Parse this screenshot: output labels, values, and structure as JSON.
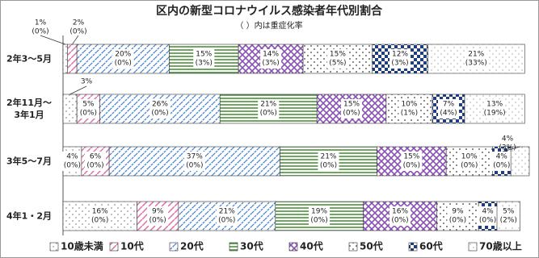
{
  "chart_data": {
    "type": "bar",
    "orientation": "horizontal",
    "stacked": true,
    "title": "区内の新型コロナウイルス感染者年代別割合",
    "subtitle": "（ ）内は重症化率",
    "categories": [
      "2年3～5月",
      "2年11月～\n3年1月",
      "3年5～7月",
      "4年1・2月"
    ],
    "xlim": [
      0,
      101
    ],
    "legend": "bottom",
    "series": [
      {
        "name": "10歳未満",
        "color": "#666666",
        "values": [
          1,
          3,
          4,
          16
        ],
        "value_labels": [
          "1%",
          "3%",
          "4%",
          "16%"
        ],
        "severe_labels": [
          "(0%)",
          null,
          "(0%)",
          "(0%)"
        ]
      },
      {
        "name": "10代",
        "color": "#e06fa8",
        "values": [
          2,
          5,
          6,
          9
        ],
        "value_labels": [
          "2%",
          "5%",
          "6%",
          "9%"
        ],
        "severe_labels": [
          "(0%)",
          "(0%)",
          "(0%)",
          "(0%)"
        ]
      },
      {
        "name": "20代",
        "color": "#3d7cc9",
        "values": [
          20,
          26,
          37,
          21
        ],
        "value_labels": [
          "20%",
          "26%",
          "37%",
          "21%"
        ],
        "severe_labels": [
          "(0%)",
          "(0%)",
          "(0%)",
          "(0%)"
        ]
      },
      {
        "name": "30代",
        "color": "#3f8a2e",
        "values": [
          15,
          21,
          21,
          19
        ],
        "value_labels": [
          "15%",
          "21%",
          "21%",
          "19%"
        ],
        "severe_labels": [
          "(3%)",
          "(0%)",
          "(0%)",
          "(0%)"
        ]
      },
      {
        "name": "40代",
        "color": "#8a4fb5",
        "values": [
          14,
          15,
          15,
          16
        ],
        "value_labels": [
          "14%",
          "15%",
          "15%",
          "16%"
        ],
        "severe_labels": [
          "(3%)",
          "(0%)",
          "(0%)",
          "(0%)"
        ]
      },
      {
        "name": "50代",
        "color": "#8c8c8c",
        "values": [
          15,
          10,
          10,
          9
        ],
        "value_labels": [
          "15%",
          "10%",
          "10%",
          "9%"
        ],
        "severe_labels": [
          "(5%)",
          "(1%)",
          "(0%)",
          "(0%)"
        ]
      },
      {
        "name": "60代",
        "color": "#1f3f7a",
        "values": [
          12,
          7,
          4,
          4
        ],
        "value_labels": [
          "12%",
          "7%",
          "4%",
          "4%"
        ],
        "severe_labels": [
          "(3%)",
          "(4%)",
          "(0%)",
          "(0%)"
        ]
      },
      {
        "name": "70歳以上",
        "color": "#777777",
        "values": [
          21,
          13,
          4,
          5
        ],
        "value_labels": [
          "21%",
          "13%",
          "4%",
          "5%"
        ],
        "severe_labels": [
          "(33%)",
          "(19%)",
          "(3%)",
          "(2%)"
        ]
      }
    ]
  }
}
